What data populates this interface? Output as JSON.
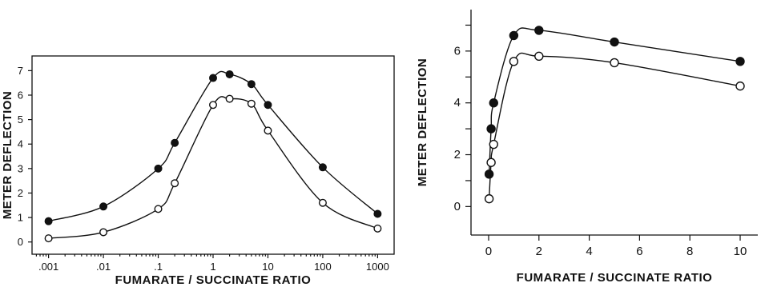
{
  "chart_data": [
    {
      "type": "line",
      "xscale": "log",
      "xlabel": "FUMARATE / SUCCINATE RATIO",
      "ylabel": "METER DEFLECTION",
      "x_tick_labels": [
        ".001",
        ".01",
        ".1",
        "1",
        "10",
        "100",
        "1000"
      ],
      "x_tick_values": [
        0.001,
        0.01,
        0.1,
        1,
        10,
        100,
        1000
      ],
      "y_tick_labels": [
        "0",
        "1",
        "2",
        "3",
        "4",
        "5",
        "6",
        "7"
      ],
      "y_tick_values": [
        0,
        1,
        2,
        3,
        4,
        5,
        6,
        7
      ],
      "xlim": [
        0.0005,
        2000
      ],
      "ylim": [
        -0.5,
        7.6
      ],
      "grid": false,
      "series": [
        {
          "marker": "filled",
          "x": [
            0.001,
            0.01,
            0.1,
            0.2,
            1,
            2,
            5,
            10,
            100,
            1000
          ],
          "y": [
            0.85,
            1.45,
            3.0,
            4.05,
            6.7,
            6.85,
            6.45,
            5.6,
            3.05,
            1.15
          ]
        },
        {
          "marker": "open",
          "x": [
            0.001,
            0.01,
            0.1,
            0.2,
            1,
            2,
            5,
            10,
            100,
            1000
          ],
          "y": [
            0.15,
            0.4,
            1.35,
            2.4,
            5.6,
            5.85,
            5.65,
            4.55,
            1.6,
            0.55
          ]
        }
      ]
    },
    {
      "type": "line",
      "xscale": "linear",
      "xlabel": "FUMARATE / SUCCINATE RATIO",
      "ylabel": "METER DEFLECTION",
      "x_tick_labels": [
        "0",
        "2",
        "4",
        "6",
        "8",
        "10"
      ],
      "x_tick_values": [
        0,
        2,
        4,
        6,
        8,
        10
      ],
      "y_tick_labels": [
        "0",
        "2",
        "4",
        "6"
      ],
      "y_tick_values": [
        0,
        2,
        4,
        6
      ],
      "xlim": [
        -0.7,
        10.7
      ],
      "ylim": [
        -1.1,
        7.6
      ],
      "grid": false,
      "series": [
        {
          "marker": "filled",
          "x": [
            0.02,
            0.1,
            0.2,
            1,
            2,
            5,
            10
          ],
          "y": [
            1.25,
            3.0,
            4.0,
            6.6,
            6.8,
            6.35,
            5.6
          ]
        },
        {
          "marker": "open",
          "x": [
            0.02,
            0.1,
            0.2,
            1,
            2,
            5,
            10
          ],
          "y": [
            0.3,
            1.7,
            2.4,
            5.6,
            5.8,
            5.55,
            4.65
          ]
        }
      ]
    }
  ]
}
